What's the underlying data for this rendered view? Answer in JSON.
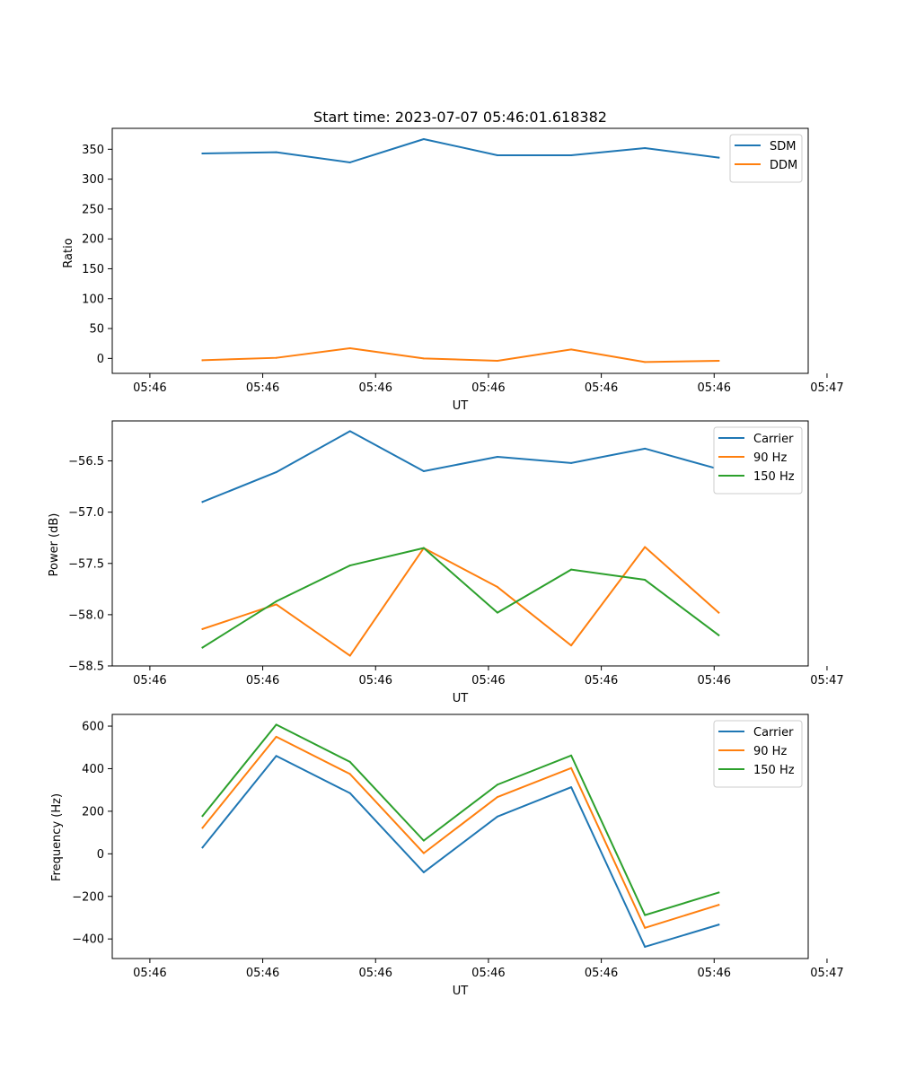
{
  "chart_data": [
    {
      "type": "line",
      "title": "Start time: 2023-07-07 05:46:01.618382",
      "xlabel": "UT",
      "ylabel": "Ratio",
      "xlim": [
        -0.5,
        8.75
      ],
      "ylim": [
        -25,
        385
      ],
      "xticks": [
        {
          "value": 0,
          "label": "05:46"
        },
        {
          "value": 1.5,
          "label": "05:46"
        },
        {
          "value": 3,
          "label": "05:46"
        },
        {
          "value": 4.5,
          "label": "05:46"
        },
        {
          "value": 6,
          "label": "05:46"
        },
        {
          "value": 7.5,
          "label": "05:46"
        },
        {
          "value": 9,
          "label": "05:47"
        }
      ],
      "yticks": [
        {
          "value": 0,
          "label": "0"
        },
        {
          "value": 50,
          "label": "50"
        },
        {
          "value": 100,
          "label": "100"
        },
        {
          "value": 150,
          "label": "150"
        },
        {
          "value": 200,
          "label": "200"
        },
        {
          "value": 250,
          "label": "250"
        },
        {
          "value": 300,
          "label": "300"
        },
        {
          "value": 350,
          "label": "350"
        }
      ],
      "legend_position": "top-right",
      "x": [
        0.7,
        1.68,
        2.66,
        3.64,
        4.62,
        5.6,
        6.58,
        7.56
      ],
      "series": [
        {
          "name": "SDM",
          "color": "#1f77b4",
          "values": [
            343,
            345,
            328,
            367,
            340,
            340,
            352,
            336
          ]
        },
        {
          "name": "DDM",
          "color": "#ff7f0e",
          "values": [
            -3,
            1,
            17,
            0,
            -4,
            15,
            -6,
            -4
          ]
        }
      ]
    },
    {
      "type": "line",
      "title": "",
      "xlabel": "UT",
      "ylabel": "Power (dB)",
      "xlim": [
        -0.5,
        8.75
      ],
      "ylim": [
        -58.5,
        -56.11
      ],
      "xticks": [
        {
          "value": 0,
          "label": "05:46"
        },
        {
          "value": 1.5,
          "label": "05:46"
        },
        {
          "value": 3,
          "label": "05:46"
        },
        {
          "value": 4.5,
          "label": "05:46"
        },
        {
          "value": 6,
          "label": "05:46"
        },
        {
          "value": 7.5,
          "label": "05:46"
        },
        {
          "value": 9,
          "label": "05:47"
        }
      ],
      "yticks": [
        {
          "value": -58.5,
          "label": "−58.5"
        },
        {
          "value": -58.0,
          "label": "−58.0"
        },
        {
          "value": -57.5,
          "label": "−57.5"
        },
        {
          "value": -57.0,
          "label": "−57.0"
        },
        {
          "value": -56.5,
          "label": "−56.5"
        }
      ],
      "legend_position": "top-right",
      "x": [
        0.7,
        1.68,
        2.66,
        3.64,
        4.62,
        5.6,
        6.58,
        7.56
      ],
      "series": [
        {
          "name": "Carrier",
          "color": "#1f77b4",
          "values": [
            -56.9,
            -56.61,
            -56.21,
            -56.6,
            -56.46,
            -56.52,
            -56.38,
            -56.58
          ]
        },
        {
          "name": "90 Hz",
          "color": "#ff7f0e",
          "values": [
            -58.14,
            -57.9,
            -58.4,
            -57.35,
            -57.73,
            -58.3,
            -57.34,
            -57.98
          ]
        },
        {
          "name": "150 Hz",
          "color": "#2ca02c",
          "values": [
            -58.32,
            -57.87,
            -57.52,
            -57.35,
            -57.98,
            -57.56,
            -57.66,
            -58.2
          ]
        }
      ]
    },
    {
      "type": "line",
      "title": "",
      "xlabel": "UT",
      "ylabel": "Frequency (Hz)",
      "xlim": [
        -0.5,
        8.75
      ],
      "ylim": [
        -492,
        655
      ],
      "xticks": [
        {
          "value": 0,
          "label": "05:46"
        },
        {
          "value": 1.5,
          "label": "05:46"
        },
        {
          "value": 3,
          "label": "05:46"
        },
        {
          "value": 4.5,
          "label": "05:46"
        },
        {
          "value": 6,
          "label": "05:46"
        },
        {
          "value": 7.5,
          "label": "05:46"
        },
        {
          "value": 9,
          "label": "05:47"
        }
      ],
      "yticks": [
        {
          "value": -400,
          "label": "−400"
        },
        {
          "value": -200,
          "label": "−200"
        },
        {
          "value": 0,
          "label": "0"
        },
        {
          "value": 200,
          "label": "200"
        },
        {
          "value": 400,
          "label": "400"
        },
        {
          "value": 600,
          "label": "600"
        }
      ],
      "legend_position": "top-right",
      "x": [
        0.7,
        1.68,
        2.66,
        3.64,
        4.62,
        5.6,
        6.58,
        7.56
      ],
      "series": [
        {
          "name": "Carrier",
          "color": "#1f77b4",
          "values": [
            30,
            460,
            285,
            -87,
            175,
            313,
            -437,
            -333
          ]
        },
        {
          "name": "90 Hz",
          "color": "#ff7f0e",
          "values": [
            122,
            550,
            375,
            3,
            267,
            403,
            -348,
            -240
          ]
        },
        {
          "name": "150 Hz",
          "color": "#2ca02c",
          "values": [
            178,
            607,
            432,
            62,
            325,
            462,
            -288,
            -182
          ]
        }
      ]
    }
  ]
}
